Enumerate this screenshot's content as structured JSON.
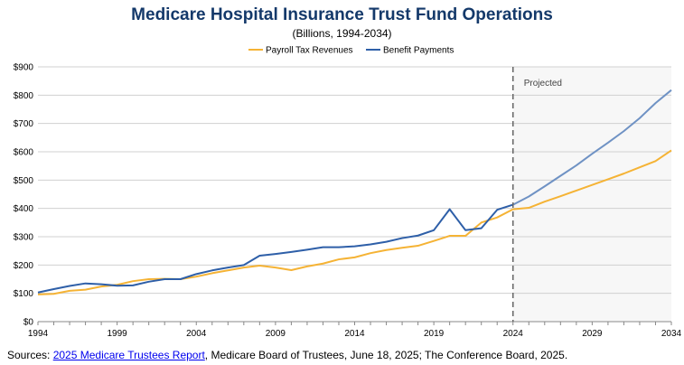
{
  "chart_data": {
    "type": "line",
    "title": "Medicare Hospital Insurance Trust Fund Operations",
    "subtitle": "(Billions, 1994-2034)",
    "xlabel": "",
    "ylabel": "",
    "x": [
      1994,
      1995,
      1996,
      1997,
      1998,
      1999,
      2000,
      2001,
      2002,
      2003,
      2004,
      2005,
      2006,
      2007,
      2008,
      2009,
      2010,
      2011,
      2012,
      2013,
      2014,
      2015,
      2016,
      2017,
      2018,
      2019,
      2020,
      2021,
      2022,
      2023,
      2024,
      2025,
      2026,
      2027,
      2028,
      2029,
      2030,
      2031,
      2032,
      2033,
      2034
    ],
    "xlim": [
      1994,
      2034
    ],
    "ylim": [
      0,
      900
    ],
    "x_ticks": [
      1994,
      1999,
      2004,
      2009,
      2014,
      2019,
      2024,
      2029,
      2034
    ],
    "y_ticks": [
      0,
      100,
      200,
      300,
      400,
      500,
      600,
      700,
      800,
      900
    ],
    "y_tick_labels": [
      "$0",
      "$100",
      "$200",
      "$300",
      "$400",
      "$500",
      "$600",
      "$700",
      "$800",
      "$900"
    ],
    "grid": "horizontal",
    "legend_position": "top-center",
    "projection_start": 2024,
    "projection_label": "Projected",
    "series": [
      {
        "name": "Payroll Tax Revenues",
        "color": "#f5b335",
        "values": [
          96,
          98,
          109,
          113,
          124,
          130,
          143,
          150,
          151,
          150,
          159,
          171,
          181,
          191,
          198,
          191,
          182,
          195,
          205,
          220,
          227,
          242,
          253,
          261,
          268,
          285,
          303,
          303,
          350,
          368,
          397,
          402,
          424,
          443,
          463,
          483,
          503,
          523,
          545,
          567,
          605
        ]
      },
      {
        "name": "Benefit Payments",
        "color": "#2e5fa8",
        "color_projected": "#6f92c4",
        "values": [
          103,
          115,
          126,
          135,
          132,
          127,
          128,
          141,
          150,
          150,
          168,
          181,
          191,
          200,
          233,
          239,
          246,
          254,
          263,
          263,
          266,
          273,
          282,
          295,
          304,
          323,
          397,
          323,
          330,
          395,
          413,
          442,
          478,
          515,
          552,
          593,
          632,
          673,
          719,
          772,
          818
        ]
      }
    ]
  },
  "footer": {
    "source_prefix": "Sources: ",
    "source_link_text": "2025 Medicare Trustees Report",
    "source_rest": ", Medicare Board of Trustees, June 18, 2025; The Conference Board, 2025."
  }
}
